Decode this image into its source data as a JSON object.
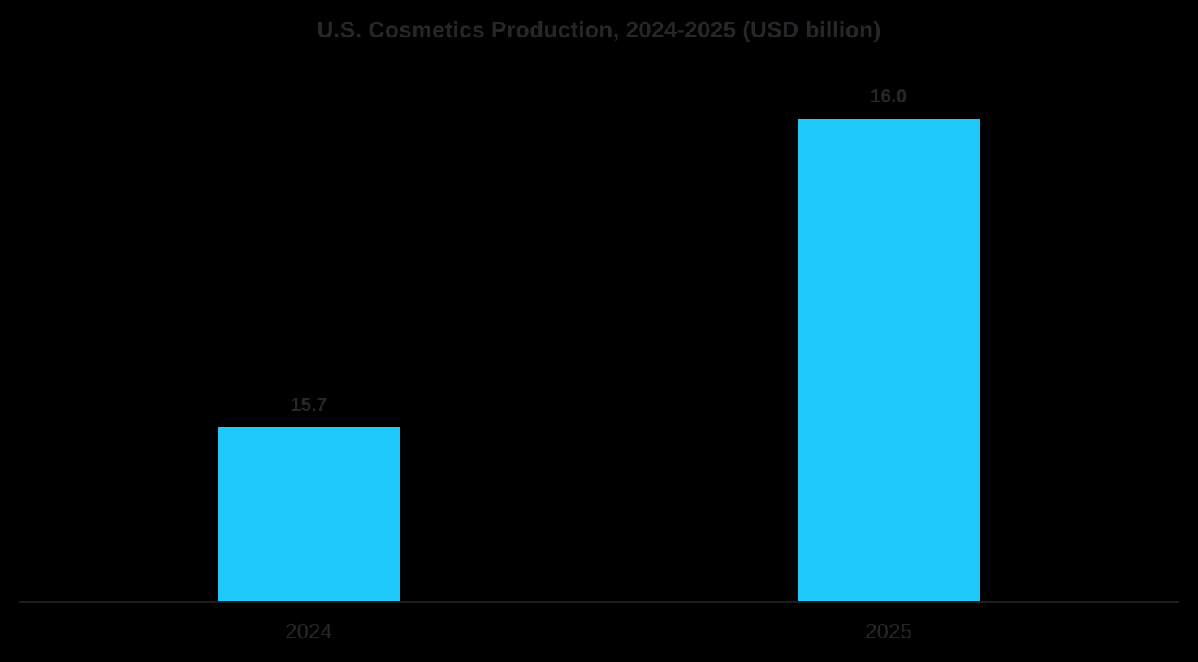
{
  "chart_data": {
    "type": "bar",
    "title": "U.S. Cosmetics Production, 2024-2025 (USD billion)",
    "categories": [
      "2024",
      "2025"
    ],
    "values": [
      15.7,
      16.0
    ],
    "value_labels": [
      "15.7",
      "16.0"
    ],
    "series": [
      {
        "name": "U.S. Cosmetics Production (USD billion)",
        "values": [
          15.7,
          16.0
        ]
      }
    ],
    "xlabel": "",
    "ylabel": "",
    "ylim": [
      15.53,
      16.0
    ],
    "grid": false,
    "legend": false,
    "bar_color": "#1EC9FA",
    "background": "#000000",
    "text_color": "#26262B",
    "axis_line_color": "#1E1E1E"
  }
}
